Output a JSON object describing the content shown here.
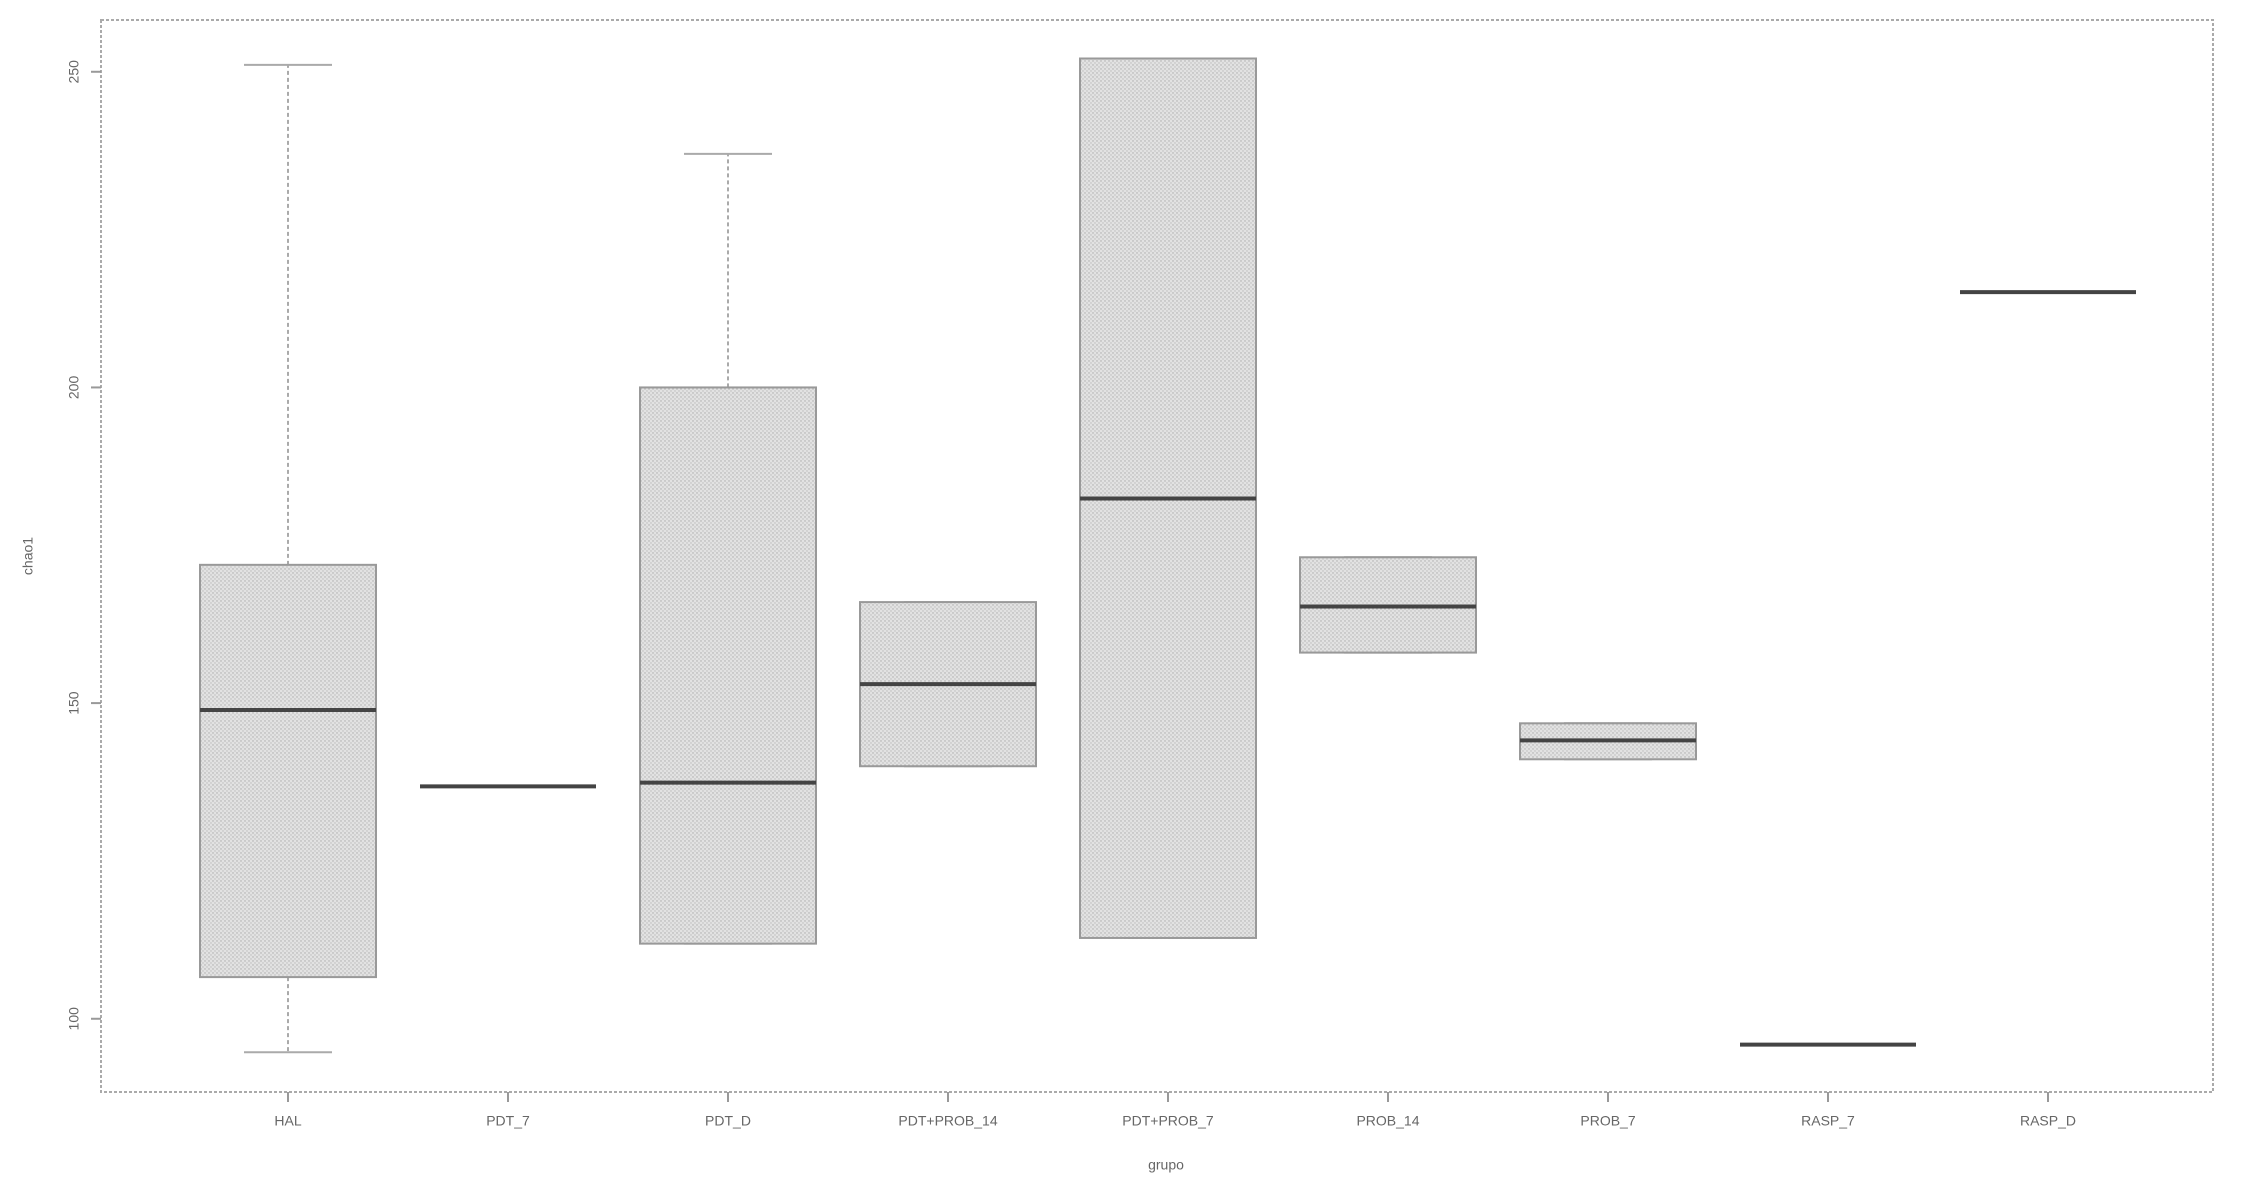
{
  "chart_data": {
    "type": "box",
    "xlabel": "grupo",
    "ylabel": "chao1",
    "categories": [
      "HAL",
      "PDT_7",
      "PDT_D",
      "PDT+PROB_14",
      "PDT+PROB_7",
      "PROB_14",
      "PROB_7",
      "RASP_7",
      "RASP_D"
    ],
    "min": [
      94.7,
      136.8,
      111.9,
      140.0,
      112.8,
      158.0,
      141.1,
      95.9,
      215.1
    ],
    "q1": [
      106.6,
      136.8,
      111.9,
      140.0,
      112.8,
      158.0,
      141.1,
      95.9,
      215.1
    ],
    "median": [
      148.9,
      136.8,
      137.4,
      153.0,
      182.4,
      165.3,
      144.1,
      95.9,
      215.1
    ],
    "q3": [
      171.9,
      136.8,
      200.0,
      166.0,
      252.1,
      173.1,
      146.8,
      95.9,
      215.1
    ],
    "max": [
      251.1,
      136.8,
      237.0,
      166.0,
      252.1,
      173.1,
      146.8,
      95.9,
      215.1
    ],
    "color": "#dcdcdc",
    "ylim": [
      88.4,
      258.2
    ],
    "yticks": [
      100,
      150,
      200,
      250
    ]
  }
}
